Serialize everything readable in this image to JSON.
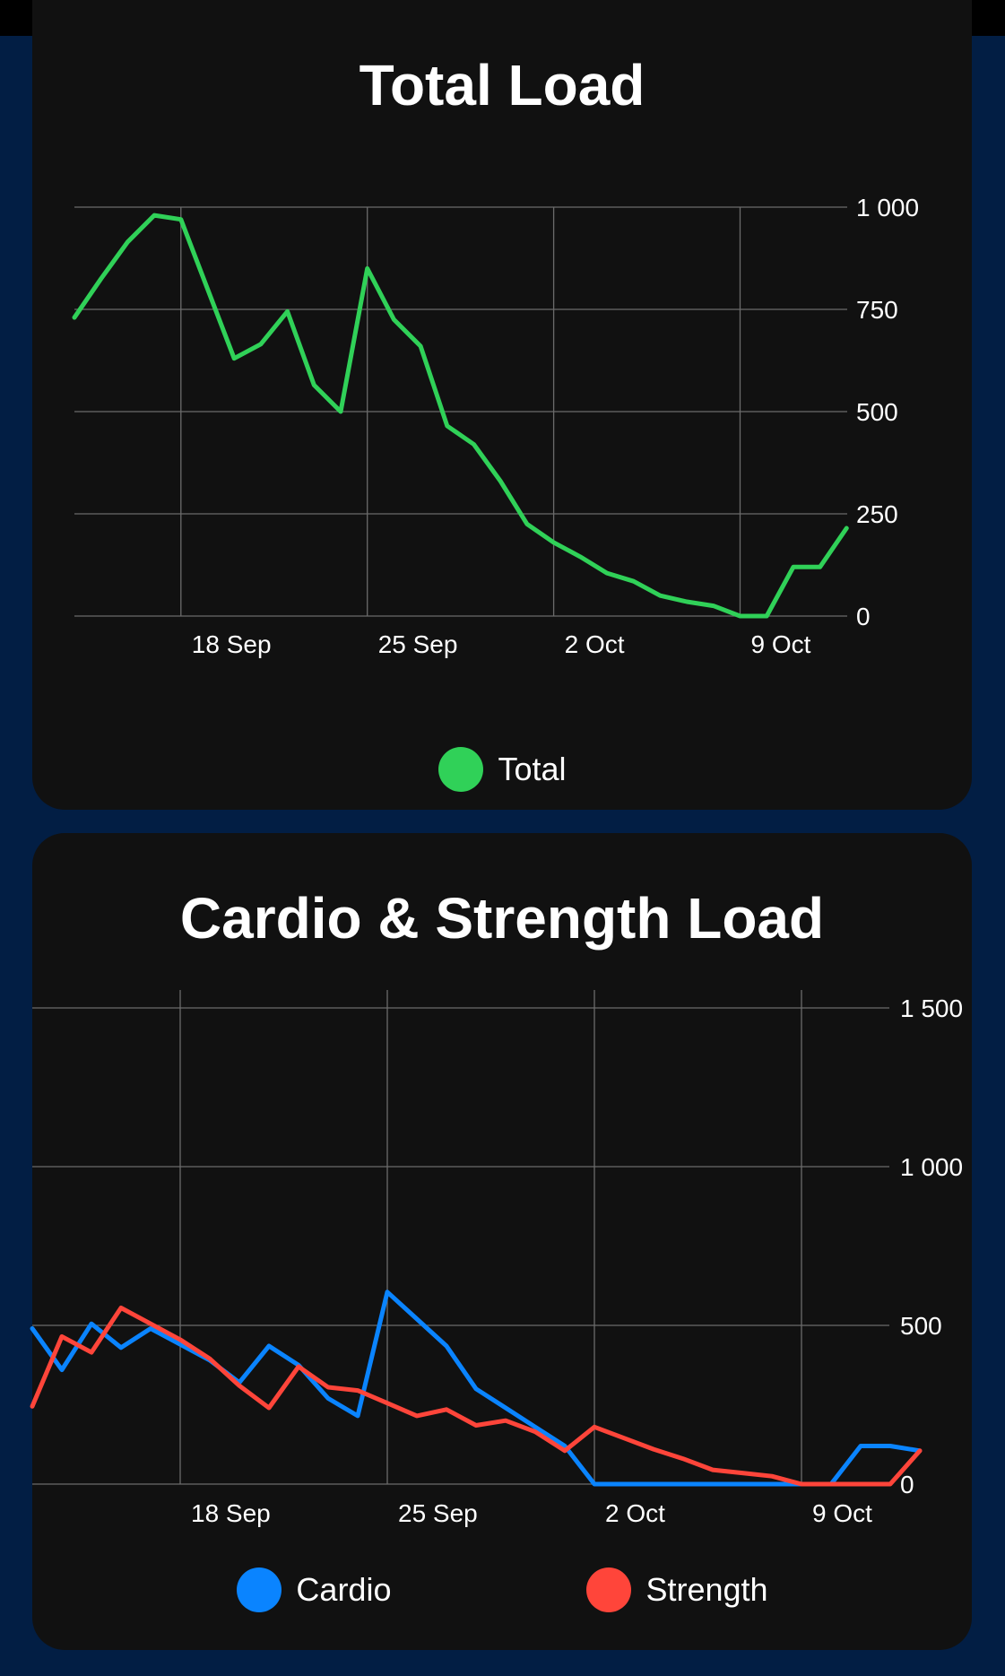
{
  "chart_data": [
    {
      "type": "line",
      "title": "Total Load",
      "x_tick_labels": [
        "18 Sep",
        "25 Sep",
        "2 Oct",
        "9 Oct"
      ],
      "y_ticks": [
        0,
        250,
        500,
        750,
        1000
      ],
      "y_tick_labels": [
        "0",
        "250",
        "500",
        "750",
        "1 000"
      ],
      "ylim": [
        0,
        1000
      ],
      "x": [
        "14 Sep",
        "15 Sep",
        "16 Sep",
        "17 Sep",
        "18 Sep",
        "19 Sep",
        "20 Sep",
        "21 Sep",
        "22 Sep",
        "23 Sep",
        "24 Sep",
        "25 Sep",
        "26 Sep",
        "27 Sep",
        "28 Sep",
        "29 Sep",
        "30 Sep",
        "1 Oct",
        "2 Oct",
        "3 Oct",
        "4 Oct",
        "5 Oct",
        "6 Oct",
        "7 Oct",
        "8 Oct",
        "9 Oct",
        "10 Oct",
        "11 Oct",
        "12 Oct",
        "13 Oct"
      ],
      "series": [
        {
          "name": "Total",
          "color": "#30D158",
          "values": [
            730,
            825,
            915,
            980,
            970,
            800,
            630,
            665,
            745,
            565,
            500,
            850,
            725,
            660,
            465,
            420,
            330,
            225,
            180,
            145,
            105,
            85,
            50,
            35,
            25,
            0,
            0,
            120,
            120,
            215
          ]
        }
      ],
      "legend": "bottom",
      "grid": true
    },
    {
      "type": "line",
      "title": "Cardio & Strength Load",
      "x_tick_labels": [
        "18 Sep",
        "25 Sep",
        "2 Oct",
        "9 Oct"
      ],
      "y_ticks": [
        0,
        500,
        1000,
        1500
      ],
      "y_tick_labels": [
        "0",
        "500",
        "1 000",
        "1 500"
      ],
      "ylim": [
        0,
        1500
      ],
      "x": [
        "13 Sep",
        "14 Sep",
        "15 Sep",
        "16 Sep",
        "17 Sep",
        "18 Sep",
        "19 Sep",
        "20 Sep",
        "21 Sep",
        "22 Sep",
        "23 Sep",
        "24 Sep",
        "25 Sep",
        "26 Sep",
        "27 Sep",
        "28 Sep",
        "29 Sep",
        "30 Sep",
        "1 Oct",
        "2 Oct",
        "3 Oct",
        "4 Oct",
        "5 Oct",
        "6 Oct",
        "7 Oct",
        "8 Oct",
        "9 Oct",
        "10 Oct",
        "11 Oct",
        "12 Oct",
        "13 Oct"
      ],
      "series": [
        {
          "name": "Cardio",
          "color": "#0A84FF",
          "values": [
            490,
            360,
            505,
            430,
            490,
            440,
            390,
            320,
            435,
            375,
            270,
            215,
            605,
            520,
            435,
            300,
            240,
            180,
            120,
            0,
            0,
            0,
            0,
            0,
            0,
            0,
            0,
            0,
            120,
            120,
            105
          ]
        },
        {
          "name": "Strength",
          "color": "#FF453A",
          "values": [
            245,
            465,
            415,
            555,
            505,
            455,
            395,
            310,
            240,
            370,
            305,
            295,
            255,
            215,
            235,
            185,
            200,
            165,
            105,
            180,
            145,
            110,
            80,
            45,
            35,
            25,
            0,
            0,
            0,
            0,
            105
          ]
        }
      ],
      "legend": "bottom",
      "grid": true
    }
  ]
}
